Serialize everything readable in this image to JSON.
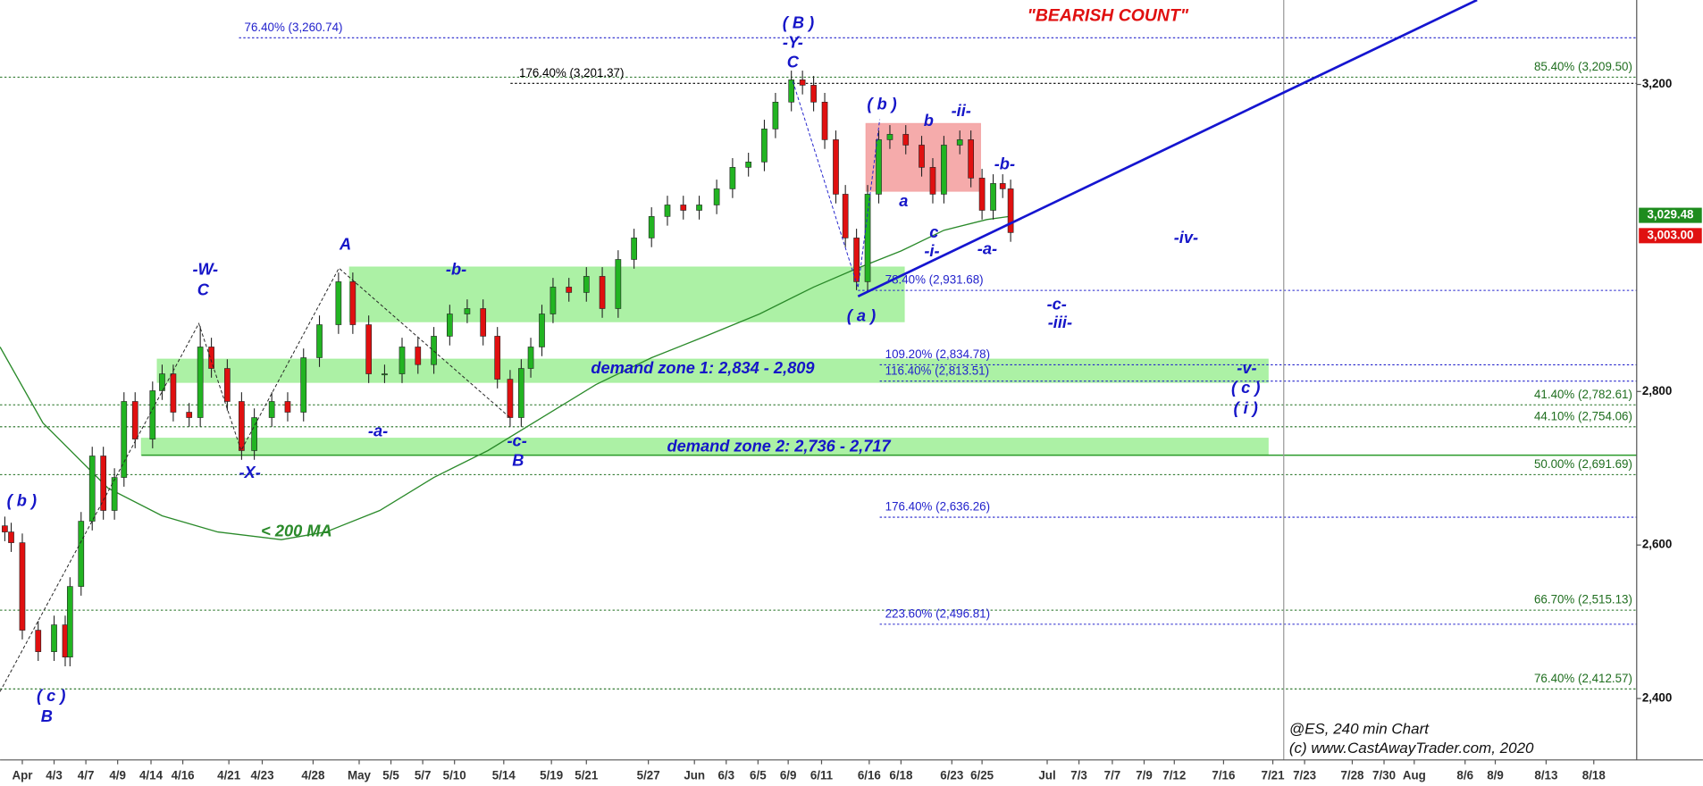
{
  "chart_data": {
    "type": "candlestick",
    "title": "\"BEARISH COUNT\"",
    "source": [
      "@ES, 240 min Chart",
      "(c) www.CastAwayTrader.com, 2020"
    ],
    "xlim": [
      0,
      103
    ],
    "ylim": [
      2320,
      3310
    ],
    "xticks": [
      {
        "value": 1.4,
        "label": "Apr"
      },
      {
        "value": 3.4,
        "label": "4/3"
      },
      {
        "value": 5.4,
        "label": "4/7"
      },
      {
        "value": 7.4,
        "label": "4/9"
      },
      {
        "value": 9.5,
        "label": "4/14"
      },
      {
        "value": 11.5,
        "label": "4/16"
      },
      {
        "value": 14.4,
        "label": "4/21"
      },
      {
        "value": 16.5,
        "label": "4/23"
      },
      {
        "value": 19.7,
        "label": "4/28"
      },
      {
        "value": 22.6,
        "label": "May"
      },
      {
        "value": 24.6,
        "label": "5/5"
      },
      {
        "value": 26.6,
        "label": "5/7"
      },
      {
        "value": 28.6,
        "label": "5/10"
      },
      {
        "value": 31.7,
        "label": "5/14"
      },
      {
        "value": 34.7,
        "label": "5/19"
      },
      {
        "value": 36.9,
        "label": "5/21"
      },
      {
        "value": 40.8,
        "label": "5/27"
      },
      {
        "value": 43.7,
        "label": "Jun"
      },
      {
        "value": 45.7,
        "label": "6/3"
      },
      {
        "value": 47.7,
        "label": "6/5"
      },
      {
        "value": 49.6,
        "label": "6/9"
      },
      {
        "value": 51.7,
        "label": "6/11"
      },
      {
        "value": 54.7,
        "label": "6/16"
      },
      {
        "value": 56.7,
        "label": "6/18"
      },
      {
        "value": 59.9,
        "label": "6/23"
      },
      {
        "value": 61.8,
        "label": "6/25"
      },
      {
        "value": 65.9,
        "label": "Jul"
      },
      {
        "value": 67.9,
        "label": "7/3"
      },
      {
        "value": 70,
        "label": "7/7"
      },
      {
        "value": 72,
        "label": "7/9"
      },
      {
        "value": 73.9,
        "label": "7/12"
      },
      {
        "value": 77,
        "label": "7/16"
      },
      {
        "value": 80.1,
        "label": "7/21"
      },
      {
        "value": 82.1,
        "label": "7/23"
      },
      {
        "value": 85.1,
        "label": "7/28"
      },
      {
        "value": 87.1,
        "label": "7/30"
      },
      {
        "value": 89,
        "label": "Aug"
      },
      {
        "value": 92.2,
        "label": "8/6"
      },
      {
        "value": 94.1,
        "label": "8/9"
      },
      {
        "value": 97.3,
        "label": "8/13"
      },
      {
        "value": 100.3,
        "label": "8/18"
      }
    ],
    "yticks": [
      {
        "value": 2400,
        "label": "2,400"
      },
      {
        "value": 2600,
        "label": "2,600"
      },
      {
        "value": 2800,
        "label": "2,800"
      },
      {
        "value": 3200,
        "label": "3,200"
      }
    ],
    "up_color": "#22b422",
    "down_color": "#e01010",
    "x": [
      0.3,
      0.7,
      1.4,
      2.4,
      3.4,
      4.1,
      4.4,
      5.1,
      5.8,
      6.5,
      7.2,
      7.8,
      8.5,
      9.6,
      10.2,
      10.9,
      11.9,
      12.6,
      13.3,
      14.3,
      15.2,
      16.0,
      17.1,
      18.1,
      19.1,
      20.1,
      21.3,
      22.2,
      23.2,
      24.2,
      25.3,
      26.3,
      27.3,
      28.3,
      29.4,
      30.4,
      31.3,
      32.1,
      32.8,
      33.4,
      34.1,
      34.8,
      35.8,
      36.9,
      37.9,
      38.9,
      39.9,
      41.0,
      42.0,
      43.0,
      44.0,
      45.1,
      46.1,
      47.1,
      48.1,
      48.8,
      49.8,
      50.5,
      51.2,
      51.9,
      52.6,
      53.2,
      53.9,
      54.6,
      55.3,
      56.0,
      57.0,
      58.0,
      58.7,
      59.4,
      60.4,
      61.1,
      61.8,
      62.5,
      63.1,
      63.6
    ],
    "open": [
      2625,
      2617,
      2603,
      2489,
      2461,
      2496,
      2454,
      2546,
      2631,
      2716,
      2645,
      2688,
      2787,
      2738,
      2801,
      2823,
      2773,
      2766,
      2858,
      2830,
      2787,
      2723,
      2766,
      2787,
      2773,
      2844,
      2887,
      2943,
      2887,
      2823,
      2823,
      2858,
      2835,
      2872,
      2901,
      2908,
      2872,
      2816,
      2766,
      2830,
      2858,
      2901,
      2936,
      2929,
      2950,
      2908,
      2972,
      3000,
      3028,
      3043,
      3036,
      3043,
      3064,
      3092,
      3099,
      3142,
      3177,
      3206,
      3199,
      3177,
      3128,
      3057,
      3000,
      2943,
      3057,
      3128,
      3135,
      3121,
      3092,
      3057,
      3121,
      3128,
      3078,
      3036,
      3071,
      3064
    ],
    "high": [
      2637,
      2629,
      2615,
      2501,
      2508,
      2508,
      2558,
      2643,
      2728,
      2728,
      2700,
      2799,
      2799,
      2813,
      2835,
      2835,
      2785,
      2885,
      2870,
      2842,
      2799,
      2778,
      2799,
      2799,
      2856,
      2899,
      2955,
      2955,
      2899,
      2835,
      2870,
      2870,
      2884,
      2913,
      2920,
      2920,
      2884,
      2828,
      2842,
      2870,
      2913,
      2948,
      2948,
      2962,
      2962,
      2984,
      3012,
      3040,
      3055,
      3055,
      3055,
      3076,
      3104,
      3111,
      3154,
      3189,
      3218,
      3218,
      3211,
      3189,
      3140,
      3069,
      3012,
      3069,
      3140,
      3147,
      3147,
      3133,
      3104,
      3133,
      3140,
      3140,
      3090,
      3083,
      3083,
      3076
    ],
    "low": [
      2605,
      2591,
      2477,
      2449,
      2449,
      2442,
      2442,
      2534,
      2619,
      2633,
      2633,
      2676,
      2726,
      2726,
      2789,
      2761,
      2754,
      2754,
      2818,
      2775,
      2711,
      2711,
      2754,
      2761,
      2761,
      2832,
      2875,
      2875,
      2811,
      2811,
      2811,
      2823,
      2823,
      2860,
      2889,
      2860,
      2804,
      2754,
      2754,
      2818,
      2846,
      2889,
      2917,
      2917,
      2896,
      2896,
      2960,
      2988,
      3016,
      3024,
      3024,
      3031,
      3052,
      3080,
      3087,
      3130,
      3165,
      3187,
      3165,
      3116,
      3045,
      2988,
      2932,
      2932,
      3045,
      3116,
      3109,
      3080,
      3045,
      3045,
      3109,
      3066,
      3024,
      3024,
      3052,
      2995
    ],
    "close": [
      2617,
      2603,
      2489,
      2461,
      2496,
      2454,
      2546,
      2631,
      2716,
      2645,
      2688,
      2787,
      2738,
      2801,
      2823,
      2773,
      2766,
      2858,
      2830,
      2787,
      2723,
      2766,
      2787,
      2773,
      2844,
      2887,
      2943,
      2887,
      2823,
      2823,
      2858,
      2835,
      2872,
      2901,
      2908,
      2872,
      2816,
      2766,
      2830,
      2858,
      2901,
      2936,
      2929,
      2950,
      2908,
      2972,
      3000,
      3028,
      3043,
      3036,
      3043,
      3064,
      3092,
      3099,
      3142,
      3177,
      3206,
      3199,
      3177,
      3128,
      3057,
      3000,
      2943,
      3057,
      3128,
      3135,
      3121,
      3092,
      3057,
      3121,
      3128,
      3078,
      3036,
      3071,
      3064,
      3007
    ],
    "moving_average": {
      "label": "< 200 MA",
      "color": "#2a8a2a",
      "x": [
        0,
        2.7,
        6.8,
        10.2,
        13.7,
        17.7,
        20.5,
        23.9,
        27.3,
        30.7,
        34.1,
        37.5,
        41.0,
        44.4,
        47.8,
        51.2,
        53.9,
        56.7,
        59.4,
        62.1,
        63.5
      ],
      "values": [
        2858,
        2759,
        2674,
        2638,
        2617,
        2607,
        2617,
        2645,
        2688,
        2723,
        2766,
        2809,
        2844,
        2872,
        2901,
        2936,
        2960,
        2983,
        3010,
        3024,
        3028
      ]
    },
    "levels": [
      {
        "label": "76.40% (3,260.74)",
        "value": 3260.74,
        "color": "#2222cc"
      },
      {
        "label": "176.40% (3,201.37)",
        "value": 3201.37,
        "color": "#000000"
      },
      {
        "label": "85.40% (3,209.50)",
        "value": 3209.5,
        "color": "#1f6e1f"
      },
      {
        "label": "78.40% (2,931.68)",
        "value": 2931.68,
        "color": "#2222cc"
      },
      {
        "label": "109.20% (2,834.78)",
        "value": 2834.78,
        "color": "#2222cc"
      },
      {
        "label": "116.40% (2,813.51)",
        "value": 2813.51,
        "color": "#2222cc"
      },
      {
        "label": "41.40% (2,782.61)",
        "value": 2782.61,
        "color": "#1f6e1f"
      },
      {
        "label": "44.10% (2,754.06)",
        "value": 2754.06,
        "color": "#1f6e1f"
      },
      {
        "label": "50.00% (2,691.69)",
        "value": 2691.69,
        "color": "#1f6e1f"
      },
      {
        "label": "176.40% (2,636.26)",
        "value": 2636.26,
        "color": "#2222cc"
      },
      {
        "label": "66.70% (2,515.13)",
        "value": 2515.13,
        "color": "#1f6e1f"
      },
      {
        "label": "223.60% (2,496.81)",
        "value": 2496.81,
        "color": "#2222cc"
      },
      {
        "label": "76.40% (2,412.57)",
        "value": 2412.57,
        "color": "#1f6e1f"
      }
    ],
    "zones": [
      {
        "color": "#f4a6a6",
        "x": [
          54.5,
          61.7
        ],
        "y": [
          3061,
          3149
        ]
      },
      {
        "color": "#a8f0a0",
        "x": [
          22.0,
          56.9
        ],
        "y": [
          2891,
          2962
        ]
      },
      {
        "label": "demand zone 1: 2,834 - 2,809",
        "color": "#a8f0a0",
        "x": [
          9.9,
          79.8
        ],
        "y": [
          2812,
          2842
        ]
      },
      {
        "label": "demand zone 2: 2,736 - 2,717",
        "color": "#a8f0a0",
        "x": [
          8.9,
          79.8
        ],
        "y": [
          2717,
          2739
        ]
      }
    ],
    "price_tags": [
      {
        "value": 3029.48,
        "label": "3,029.48",
        "color": "#1e8c1e"
      },
      {
        "value": 3003.0,
        "label": "3,003.00",
        "color": "#e01010"
      }
    ],
    "annotations": [
      "( B )",
      "-Y-",
      "C",
      "( b )",
      "b",
      "-ii-",
      "-b-",
      "a",
      "c",
      "-i-",
      "-a-",
      "-iv-",
      "( a )",
      "-c-",
      "-iii-",
      "-v-",
      "( c )",
      "( i )",
      "-W-",
      "C",
      "A",
      "-b-",
      "-a-",
      "-X-",
      "-c-",
      "B",
      "( b )",
      "( c )",
      "B"
    ]
  }
}
